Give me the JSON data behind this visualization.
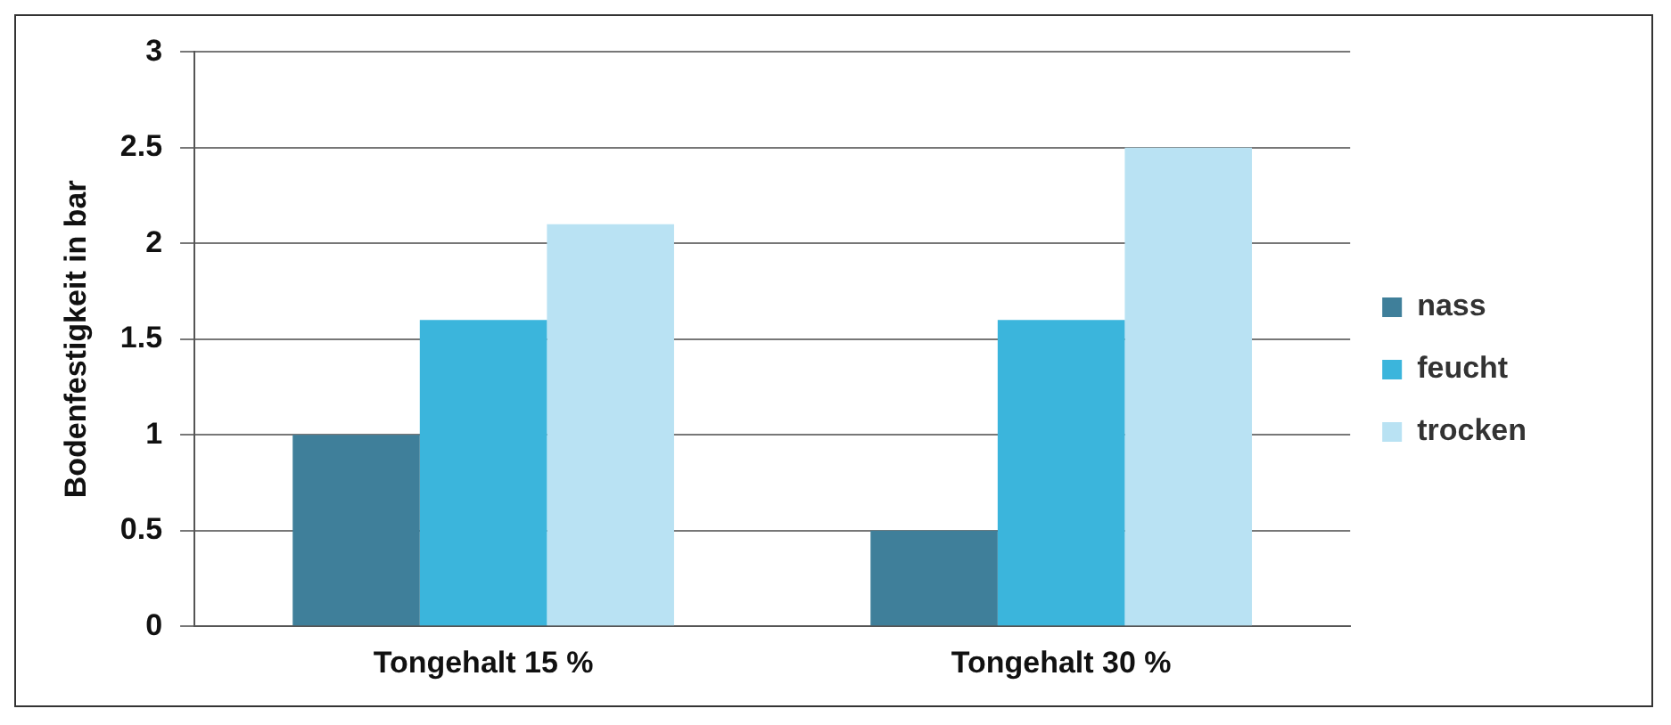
{
  "chart_data": {
    "type": "bar",
    "ylabel": "Bodenfestigkeit in bar",
    "categories": [
      "Tongehalt 15 %",
      "Tongehalt 30 %"
    ],
    "series": [
      {
        "name": "nass",
        "color": "#3f7f9a",
        "values": [
          1,
          0.5
        ]
      },
      {
        "name": "feucht",
        "color": "#3bb5dc",
        "values": [
          1.6,
          1.6
        ]
      },
      {
        "name": "trocken",
        "color": "#b9e2f3",
        "values": [
          2.1,
          2.5
        ]
      }
    ],
    "ylim": [
      0,
      3
    ],
    "yticks": [
      0,
      0.5,
      1,
      1.5,
      2,
      2.5,
      3
    ],
    "grid": "y",
    "legend": "right"
  }
}
